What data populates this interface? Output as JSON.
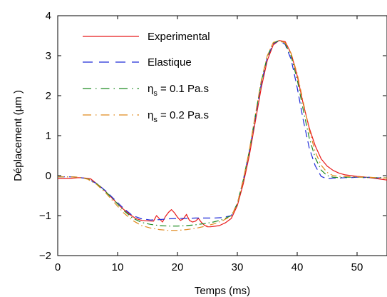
{
  "chart_data": {
    "type": "line",
    "title": "",
    "xlabel": "Temps (ms)",
    "ylabel": "Déplacement (µm )",
    "xlim": [
      0,
      55
    ],
    "ylim": [
      -2,
      4
    ],
    "xticks": [
      0,
      10,
      20,
      30,
      40,
      50
    ],
    "yticks": [
      -2,
      -1,
      0,
      1,
      2,
      3,
      4
    ],
    "grid": false,
    "legend_position": "top-left",
    "series": [
      {
        "name": "Experimental",
        "legend_parts": {
          "main": "Experimental",
          "sub": "",
          "tail": ""
        },
        "color": "#e8191a",
        "dash": "solid",
        "x": [
          0,
          2,
          3.5,
          4.5,
          5.5,
          6.5,
          7.5,
          9,
          10.5,
          12,
          13,
          14,
          15,
          16,
          16.5,
          17,
          17.5,
          18,
          18.5,
          19,
          19.5,
          20,
          20.5,
          21,
          21.5,
          22,
          22.5,
          23,
          23.5,
          24,
          24.5,
          25,
          25.5,
          26,
          27,
          28,
          29,
          30,
          31,
          32,
          33,
          34,
          35,
          36,
          37,
          38,
          39,
          40,
          41,
          42,
          43,
          44,
          45,
          46,
          47,
          48,
          49,
          50,
          51,
          52,
          53,
          54,
          55
        ],
        "y": [
          -0.07,
          -0.07,
          -0.05,
          -0.06,
          -0.08,
          -0.2,
          -0.32,
          -0.55,
          -0.78,
          -0.97,
          -1.07,
          -1.12,
          -1.13,
          -1.14,
          -1.0,
          -1.08,
          -1.16,
          -1.02,
          -0.92,
          -0.85,
          -0.93,
          -1.04,
          -1.12,
          -1.08,
          -0.97,
          -1.12,
          -1.16,
          -1.14,
          -1.07,
          -1.17,
          -1.24,
          -1.28,
          -1.28,
          -1.27,
          -1.25,
          -1.18,
          -1.07,
          -0.75,
          -0.2,
          0.5,
          1.35,
          2.2,
          2.88,
          3.27,
          3.38,
          3.35,
          3.05,
          2.5,
          1.8,
          1.2,
          0.75,
          0.42,
          0.24,
          0.13,
          0.06,
          0.02,
          0.0,
          -0.02,
          -0.03,
          -0.05,
          -0.07,
          -0.09,
          -0.11
        ]
      },
      {
        "name": "Elastique",
        "legend_parts": {
          "main": "Elastique",
          "sub": "",
          "tail": ""
        },
        "color": "#1f2bd8",
        "dash": "dashed",
        "x": [
          0,
          2,
          3.5,
          5,
          6.5,
          8,
          9.5,
          11,
          12.5,
          14,
          15.5,
          17,
          18.5,
          20,
          21.5,
          23,
          24.5,
          26,
          27.5,
          29,
          30,
          31,
          32,
          33,
          34,
          35,
          36,
          37,
          38,
          39,
          40,
          41,
          42,
          43,
          44,
          45,
          46,
          47,
          48,
          49,
          50,
          51,
          52,
          53,
          54,
          55
        ],
        "y": [
          -0.03,
          -0.03,
          -0.04,
          -0.08,
          -0.2,
          -0.38,
          -0.6,
          -0.82,
          -1.0,
          -1.08,
          -1.11,
          -1.1,
          -1.08,
          -1.07,
          -1.07,
          -1.06,
          -1.06,
          -1.06,
          -1.05,
          -1.0,
          -0.7,
          -0.1,
          0.6,
          1.45,
          2.3,
          2.95,
          3.3,
          3.38,
          3.28,
          2.9,
          2.2,
          1.4,
          0.7,
          0.25,
          -0.02,
          -0.08,
          -0.06,
          -0.06,
          -0.05,
          -0.05,
          -0.04,
          -0.05,
          -0.04,
          -0.06,
          -0.05,
          -0.06
        ]
      },
      {
        "name": "η",
        "legend_parts": {
          "main": "η",
          "sub": "s",
          "tail": " =  0.1 Pa.s"
        },
        "color": "#1e8b22",
        "dash": "dashdot",
        "x": [
          0,
          2,
          3.5,
          5,
          6.5,
          8,
          9.5,
          11,
          12.5,
          14,
          15.5,
          17,
          18.5,
          20,
          21.5,
          23,
          24.5,
          26,
          27.5,
          29,
          30,
          31,
          32,
          33,
          34,
          35,
          36,
          37,
          38,
          39,
          40,
          41,
          42,
          43,
          44,
          45,
          46,
          47,
          48,
          49,
          50,
          51,
          52,
          53,
          54,
          55
        ],
        "y": [
          -0.03,
          -0.03,
          -0.04,
          -0.08,
          -0.2,
          -0.4,
          -0.63,
          -0.87,
          -1.06,
          -1.17,
          -1.22,
          -1.25,
          -1.26,
          -1.26,
          -1.25,
          -1.23,
          -1.2,
          -1.16,
          -1.1,
          -1.0,
          -0.7,
          -0.1,
          0.62,
          1.5,
          2.35,
          2.98,
          3.32,
          3.38,
          3.3,
          2.98,
          2.4,
          1.65,
          0.95,
          0.45,
          0.14,
          0.0,
          -0.04,
          -0.05,
          -0.04,
          -0.04,
          -0.04,
          -0.04,
          -0.05,
          -0.05,
          -0.05,
          -0.06
        ]
      },
      {
        "name": "η",
        "legend_parts": {
          "main": "η",
          "sub": "s",
          "tail": " =  0.2 Pa.s"
        },
        "color": "#e08a1e",
        "dash": "dashdot",
        "x": [
          0,
          2,
          3.5,
          5,
          6.5,
          8,
          9.5,
          11,
          12.5,
          14,
          15.5,
          17,
          18.5,
          20,
          21.5,
          23,
          24.5,
          26,
          27.5,
          29,
          30,
          31,
          32,
          33,
          34,
          35,
          36,
          37,
          38,
          39,
          40,
          41,
          42,
          43,
          44,
          45,
          46,
          47,
          48,
          49,
          50,
          51,
          52,
          53,
          54,
          55
        ],
        "y": [
          -0.03,
          -0.03,
          -0.04,
          -0.09,
          -0.22,
          -0.43,
          -0.68,
          -0.93,
          -1.12,
          -1.25,
          -1.31,
          -1.35,
          -1.37,
          -1.37,
          -1.35,
          -1.32,
          -1.27,
          -1.21,
          -1.13,
          -1.01,
          -0.7,
          -0.1,
          0.63,
          1.52,
          2.38,
          3.0,
          3.33,
          3.38,
          3.32,
          3.05,
          2.55,
          1.85,
          1.15,
          0.6,
          0.26,
          0.08,
          0.0,
          -0.02,
          -0.02,
          -0.03,
          -0.03,
          -0.04,
          -0.04,
          -0.05,
          -0.06,
          -0.06
        ]
      }
    ]
  }
}
